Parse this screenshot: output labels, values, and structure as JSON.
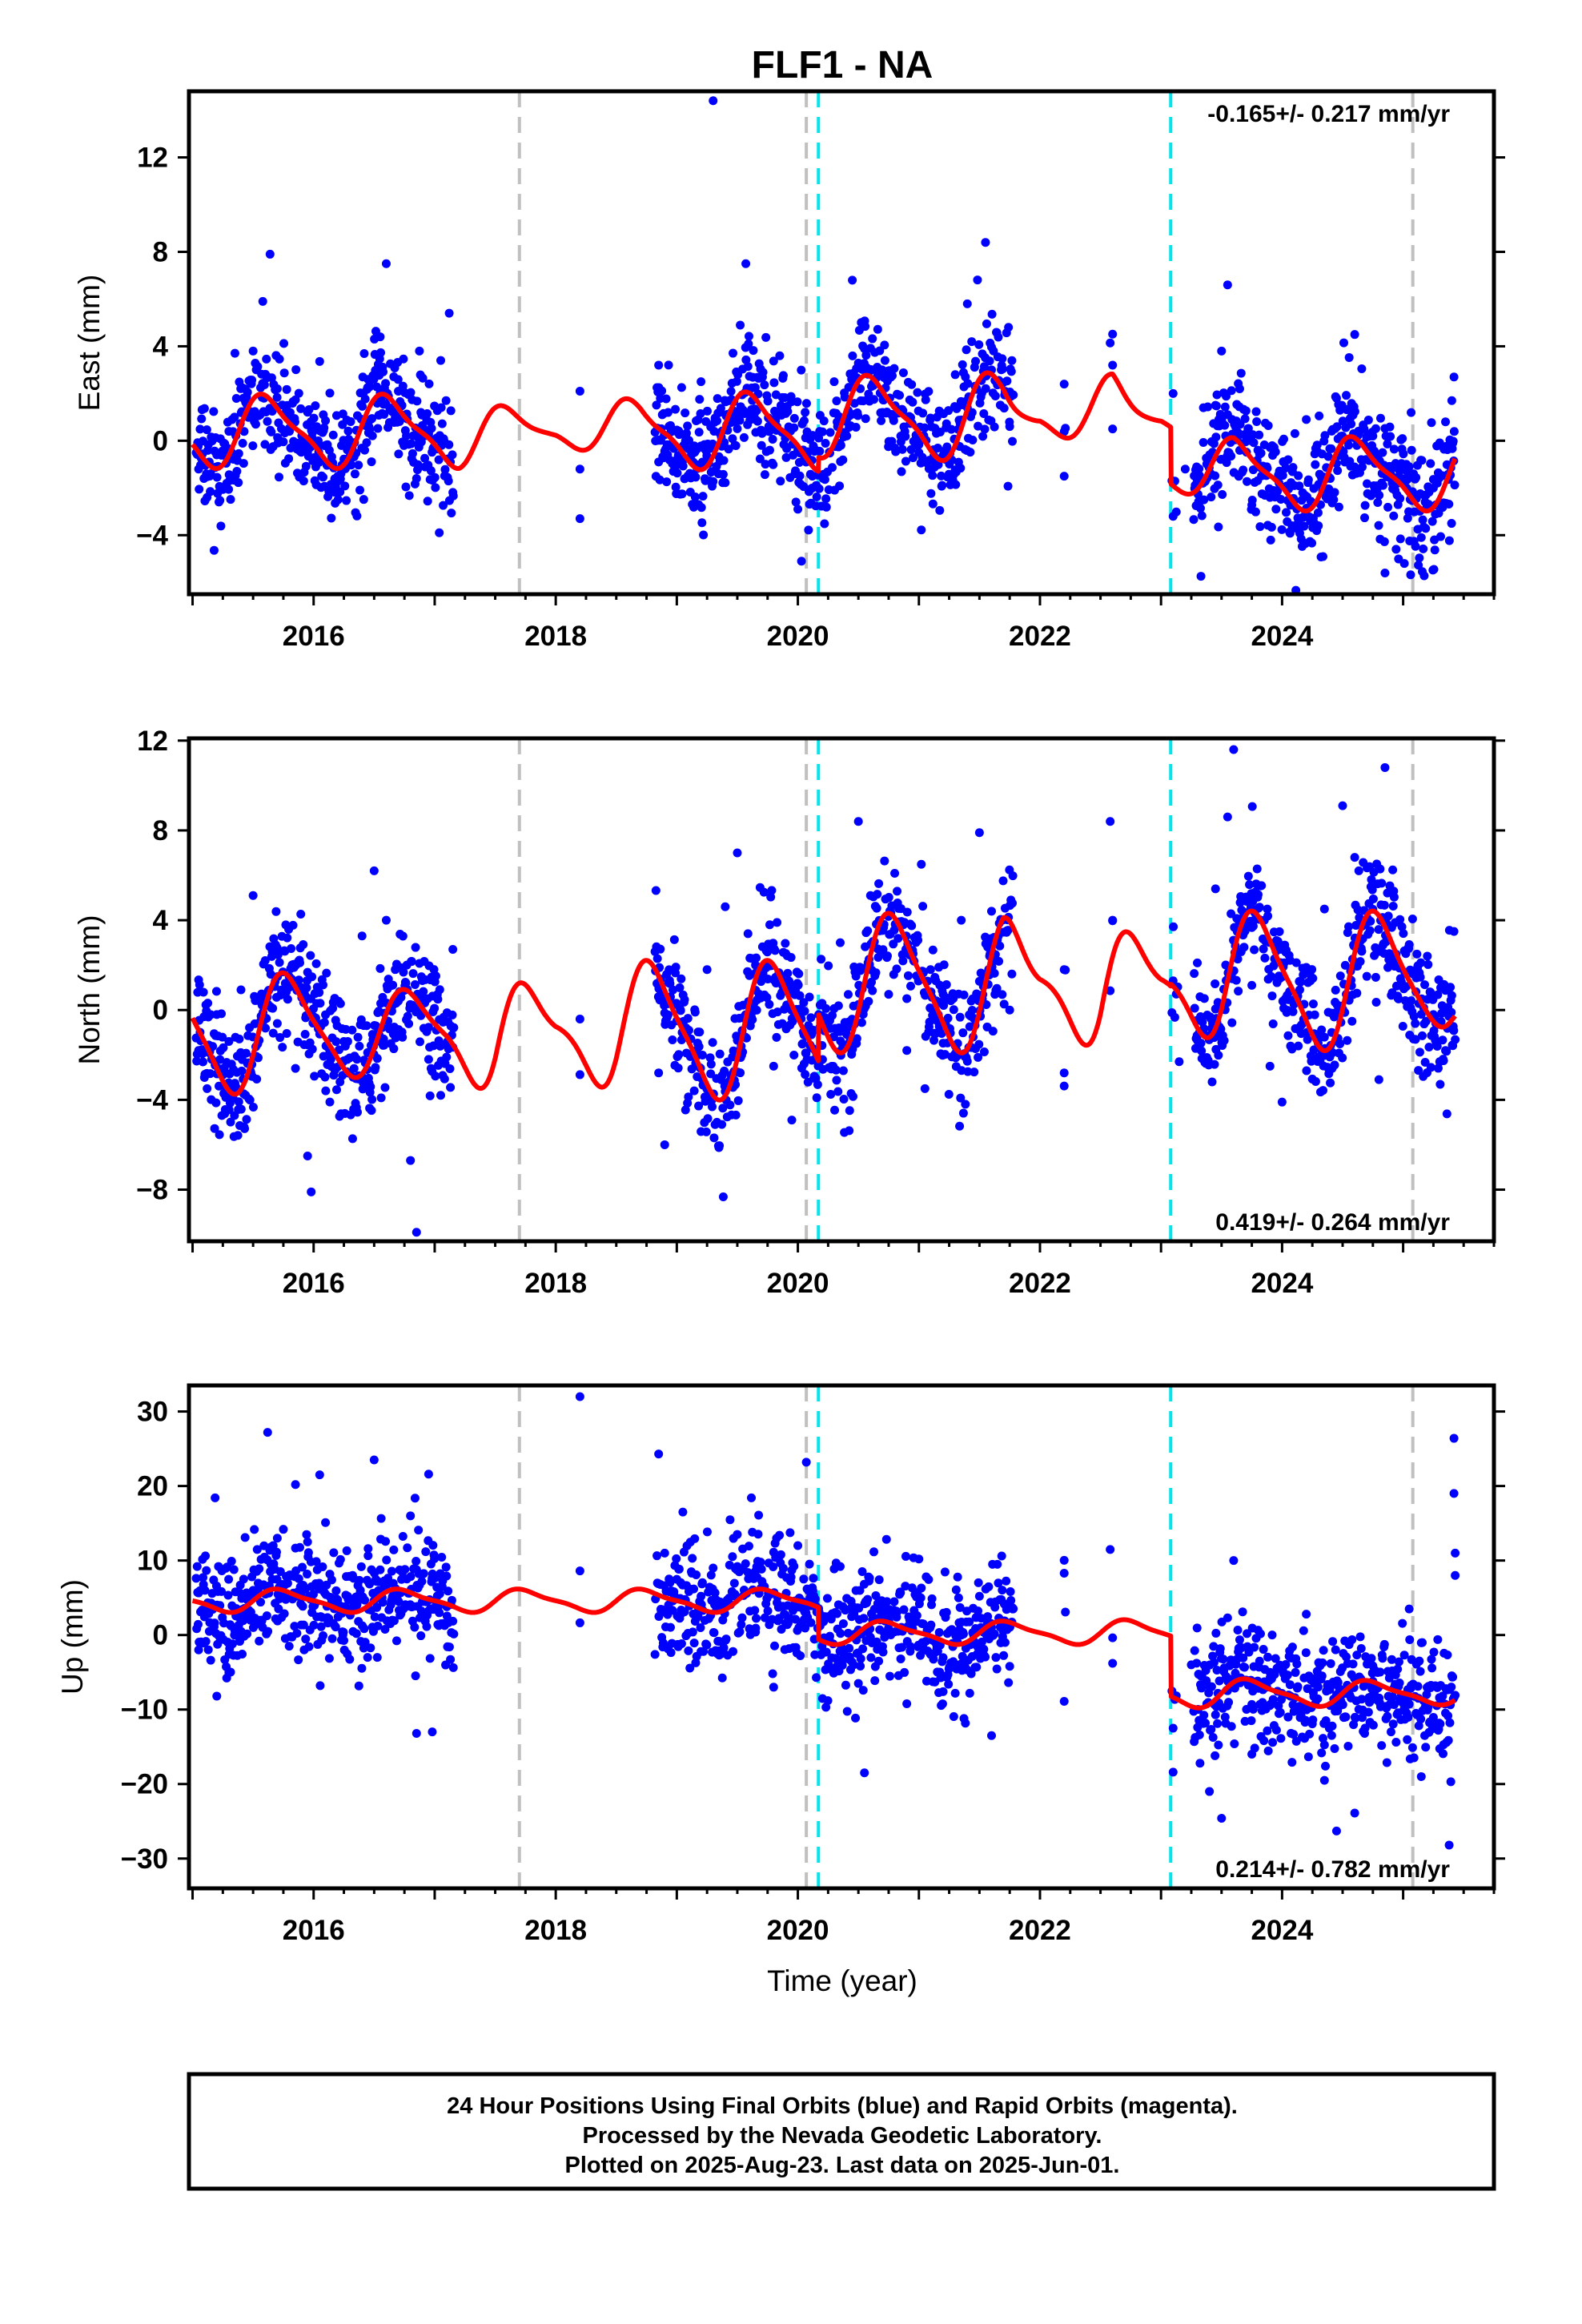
{
  "page": {
    "title": "FLF1 - NA",
    "x_label": "Time (year)",
    "footer_lines": [
      "24 Hour Positions Using Final Orbits (blue) and Rapid Orbits (magenta).",
      "Processed by the Nevada Geodetic Laboratory.",
      "Plotted on 2025-Aug-23. Last data on 2025-Jun-01."
    ]
  },
  "colors": {
    "points": "#0000ff",
    "model": "#ff0000",
    "equipment_change": "#c0c0c0",
    "earthquake": "#00e5ee",
    "frame": "#000000"
  },
  "chart_data": [
    {
      "type": "scatter",
      "name": "east",
      "ylabel": "East (mm)",
      "ylim": [
        -6.5,
        14.8
      ],
      "xlim": [
        2014.97,
        2025.75
      ],
      "yticks": [
        -4,
        0,
        4,
        8,
        12
      ],
      "yticklabels": [
        "−4",
        "0",
        "4",
        "8",
        "12"
      ],
      "xticks": [
        2016,
        2018,
        2020,
        2022,
        2024
      ],
      "xticklabels": [
        "2016",
        "2018",
        "2020",
        "2022",
        "2024"
      ],
      "rate_label": "-0.165+/- 0.217 mm/yr",
      "rate_position": "top-right",
      "equipment_changes": [
        2017.7,
        2020.07,
        2025.08
      ],
      "earthquakes": [
        2020.17,
        2023.08
      ],
      "model": {
        "amplitude": 1.4,
        "phase": 0.38,
        "semi_amplitude": 0.4,
        "offsets": [
          {
            "t": 2015.0,
            "v": 0.4
          },
          {
            "t": 2020.17,
            "v": 1.0
          },
          {
            "t": 2023.08,
            "v": -1.4
          }
        ],
        "steps": [
          {
            "t": 2020.07,
            "d": -0.6
          },
          {
            "t": 2020.17,
            "d": 2.2
          },
          {
            "t": 2023.08,
            "d": -1.8
          },
          {
            "t": 2025.08,
            "d": 0.5
          }
        ],
        "envelope": [
          [
            2015.0,
            1.0
          ],
          [
            2017.2,
            1.0
          ],
          [
            2018.0,
            0.3
          ],
          [
            2018.7,
            1.0
          ],
          [
            2021.7,
            1.2
          ],
          [
            2022.0,
            0.3
          ],
          [
            2022.4,
            0.8
          ],
          [
            2022.6,
            1.2
          ],
          [
            2023.0,
            0.3
          ],
          [
            2023.6,
            1.0
          ],
          [
            2025.4,
            1.0
          ]
        ]
      },
      "sample_points": [
        [
          2015.05,
          -1.2
        ],
        [
          2015.12,
          -2.4
        ],
        [
          2015.2,
          -0.6
        ],
        [
          2015.3,
          0.4
        ],
        [
          2015.42,
          1.8
        ],
        [
          2015.5,
          3.8
        ],
        [
          2015.58,
          5.9
        ],
        [
          2015.64,
          7.9
        ],
        [
          2015.7,
          2.2
        ],
        [
          2015.8,
          0.4
        ],
        [
          2015.95,
          -0.5
        ],
        [
          2016.08,
          1.1
        ],
        [
          2016.2,
          -1.5
        ],
        [
          2016.3,
          -0.2
        ],
        [
          2016.45,
          2.6
        ],
        [
          2016.55,
          4.4
        ],
        [
          2016.6,
          7.5
        ],
        [
          2016.7,
          2.1
        ],
        [
          2016.85,
          -1.6
        ],
        [
          2016.95,
          0.3
        ],
        [
          2017.05,
          3.4
        ],
        [
          2017.12,
          5.4
        ],
        [
          2018.2,
          2.1
        ],
        [
          2018.2,
          -3.3
        ],
        [
          2018.85,
          -0.9
        ],
        [
          2018.85,
          3.2
        ],
        [
          2019.1,
          -1.5
        ],
        [
          2019.2,
          2.5
        ],
        [
          2019.3,
          14.4
        ],
        [
          2019.45,
          1.2
        ],
        [
          2019.57,
          7.5
        ],
        [
          2019.7,
          -0.2
        ],
        [
          2019.85,
          3.6
        ],
        [
          2020.0,
          -2.9
        ],
        [
          2020.03,
          -5.1
        ],
        [
          2020.12,
          -2.0
        ],
        [
          2020.18,
          0.4
        ],
        [
          2020.3,
          2.5
        ],
        [
          2020.45,
          6.8
        ],
        [
          2020.55,
          3.9
        ],
        [
          2020.7,
          1.2
        ],
        [
          2020.85,
          0.2
        ],
        [
          2021.0,
          -0.5
        ],
        [
          2021.15,
          1.0
        ],
        [
          2021.3,
          2.8
        ],
        [
          2021.4,
          5.8
        ],
        [
          2021.55,
          8.4
        ],
        [
          2021.6,
          3.0
        ],
        [
          2021.75,
          0.6
        ],
        [
          2022.2,
          2.4
        ],
        [
          2022.2,
          -1.5
        ],
        [
          2022.6,
          3.2
        ],
        [
          2022.6,
          0.5
        ],
        [
          2023.1,
          2.0
        ],
        [
          2023.1,
          -3.2
        ],
        [
          2023.2,
          -1.2
        ],
        [
          2023.35,
          1.4
        ],
        [
          2023.5,
          3.8
        ],
        [
          2023.55,
          6.6
        ],
        [
          2023.65,
          2.2
        ],
        [
          2023.8,
          -0.4
        ],
        [
          2023.9,
          -2.4
        ],
        [
          2024.05,
          -0.8
        ],
        [
          2024.2,
          0.9
        ],
        [
          2024.3,
          -3.6
        ],
        [
          2024.45,
          1.8
        ],
        [
          2024.6,
          4.5
        ],
        [
          2024.75,
          0.2
        ],
        [
          2024.85,
          -5.6
        ],
        [
          2024.95,
          -2.3
        ],
        [
          2025.05,
          -1.1
        ],
        [
          2025.15,
          -4.1
        ],
        [
          2025.25,
          -2.0
        ],
        [
          2025.35,
          0.8
        ],
        [
          2025.42,
          2.7
        ],
        [
          2025.4,
          -3.5
        ]
      ]
    },
    {
      "type": "scatter",
      "name": "north",
      "ylabel": "North (mm)",
      "ylim": [
        -10.3,
        12.1
      ],
      "xlim": [
        2014.97,
        2025.75
      ],
      "yticks": [
        -8,
        -4,
        0,
        4,
        8,
        12
      ],
      "yticklabels": [
        "−8",
        "−4",
        "0",
        "4",
        "8",
        "12"
      ],
      "xticks": [
        2016,
        2018,
        2020,
        2022,
        2024
      ],
      "xticklabels": [
        "2016",
        "2018",
        "2020",
        "2022",
        "2024"
      ],
      "rate_label": "0.419+/- 0.264 mm/yr",
      "rate_position": "bottom-right",
      "equipment_changes": [
        2017.7,
        2020.07,
        2025.08
      ],
      "earthquakes": [
        2020.17,
        2023.08
      ],
      "model": {
        "amplitude": 2.9,
        "phase": 0.55,
        "semi_amplitude": 0.6,
        "offsets": [
          {
            "t": 2015.0,
            "v": -0.9
          },
          {
            "t": 2020.17,
            "v": 1.2
          },
          {
            "t": 2023.08,
            "v": 1.3
          }
        ],
        "steps": [
          {
            "t": 2020.07,
            "d": -0.8
          },
          {
            "t": 2020.17,
            "d": 0.8
          },
          {
            "t": 2025.08,
            "d": -0.4
          }
        ],
        "envelope": [
          [
            2015.0,
            1.0
          ],
          [
            2017.1,
            0.5
          ],
          [
            2017.5,
            1.0
          ],
          [
            2018.0,
            0.3
          ],
          [
            2018.5,
            1.0
          ],
          [
            2019.3,
            1.0
          ],
          [
            2021.7,
            1.0
          ],
          [
            2022.0,
            0.3
          ],
          [
            2022.5,
            1.1
          ],
          [
            2023.0,
            0.3
          ],
          [
            2023.5,
            1.0
          ],
          [
            2025.0,
            1.0
          ],
          [
            2025.4,
            0.6
          ]
        ]
      },
      "sample_points": [
        [
          2015.05,
          -1.8
        ],
        [
          2015.12,
          -3.5
        ],
        [
          2015.2,
          -0.2
        ],
        [
          2015.3,
          -1.4
        ],
        [
          2015.4,
          0.9
        ],
        [
          2015.5,
          5.1
        ],
        [
          2015.6,
          2.2
        ],
        [
          2015.7,
          -0.6
        ],
        [
          2015.85,
          -2.6
        ],
        [
          2015.95,
          -6.5
        ],
        [
          2015.98,
          -8.1
        ],
        [
          2016.1,
          -3.6
        ],
        [
          2016.25,
          -1.4
        ],
        [
          2016.4,
          3.3
        ],
        [
          2016.5,
          6.2
        ],
        [
          2016.6,
          4.0
        ],
        [
          2016.7,
          0.4
        ],
        [
          2016.8,
          -6.7
        ],
        [
          2016.85,
          -9.9
        ],
        [
          2016.95,
          -2.2
        ],
        [
          2017.05,
          -3.8
        ],
        [
          2017.15,
          2.7
        ],
        [
          2018.2,
          -0.4
        ],
        [
          2018.85,
          -2.8
        ],
        [
          2018.9,
          -6.0
        ],
        [
          2019.1,
          -0.9
        ],
        [
          2019.25,
          1.8
        ],
        [
          2019.4,
          4.6
        ],
        [
          2019.5,
          7.0
        ],
        [
          2019.65,
          2.0
        ],
        [
          2019.8,
          -2.5
        ],
        [
          2019.95,
          -4.9
        ],
        [
          2020.05,
          -1.1
        ],
        [
          2020.2,
          0.3
        ],
        [
          2020.35,
          3.0
        ],
        [
          2020.5,
          8.4
        ],
        [
          2020.6,
          5.1
        ],
        [
          2020.75,
          0.7
        ],
        [
          2020.9,
          -1.8
        ],
        [
          2021.05,
          -3.5
        ],
        [
          2021.2,
          0.7
        ],
        [
          2021.35,
          4.0
        ],
        [
          2021.5,
          7.9
        ],
        [
          2021.6,
          4.4
        ],
        [
          2021.75,
          0.0
        ],
        [
          2022.2,
          1.8
        ],
        [
          2022.2,
          -2.8
        ],
        [
          2022.58,
          8.4
        ],
        [
          2022.6,
          4.0
        ],
        [
          2023.1,
          1.3
        ],
        [
          2023.15,
          -2.3
        ],
        [
          2023.3,
          2.1
        ],
        [
          2023.45,
          5.4
        ],
        [
          2023.55,
          8.6
        ],
        [
          2023.6,
          11.6
        ],
        [
          2023.75,
          1.1
        ],
        [
          2023.9,
          -2.5
        ],
        [
          2024.0,
          -4.1
        ],
        [
          2024.2,
          1.9
        ],
        [
          2024.35,
          4.5
        ],
        [
          2024.5,
          9.1
        ],
        [
          2024.6,
          6.8
        ],
        [
          2024.7,
          1.5
        ],
        [
          2024.8,
          -3.1
        ],
        [
          2024.85,
          10.8
        ],
        [
          2024.95,
          2.0
        ],
        [
          2025.1,
          -0.6
        ],
        [
          2025.2,
          2.4
        ],
        [
          2025.35,
          -1.8
        ],
        [
          2025.42,
          3.5
        ]
      ]
    },
    {
      "type": "scatter",
      "name": "up",
      "ylabel": "Up (mm)",
      "ylim": [
        -34,
        33.5
      ],
      "xlim": [
        2014.97,
        2025.75
      ],
      "yticks": [
        -30,
        -20,
        -10,
        0,
        10,
        20,
        30
      ],
      "yticklabels": [
        "−30",
        "−20",
        "−10",
        "0",
        "10",
        "20",
        "30"
      ],
      "xticks": [
        2016,
        2018,
        2020,
        2022,
        2024
      ],
      "xticklabels": [
        "2016",
        "2018",
        "2020",
        "2022",
        "2024"
      ],
      "rate_label": "0.214+/- 0.782 mm/yr",
      "rate_position": "bottom-right",
      "equipment_changes": [
        2017.7,
        2020.07,
        2025.08
      ],
      "earthquakes": [
        2020.17,
        2023.08
      ],
      "model": {
        "amplitude": 1.4,
        "phase": 0.5,
        "semi_amplitude": 0.4,
        "offsets": [
          {
            "t": 2015.0,
            "v": 4.6
          },
          {
            "t": 2020.17,
            "v": 0.3
          },
          {
            "t": 2023.08,
            "v": -7.8
          }
        ],
        "steps": [
          {
            "t": 2020.07,
            "d": -1.2
          },
          {
            "t": 2020.17,
            "d": -7.5
          },
          {
            "t": 2023.08,
            "d": -9.5
          },
          {
            "t": 2025.08,
            "d": 2.0
          }
        ],
        "envelope": [
          [
            2015.0,
            1.0
          ],
          [
            2022.5,
            1.0
          ],
          [
            2023.0,
            1.3
          ],
          [
            2025.4,
            1.0
          ]
        ]
      },
      "sample_points": [
        [
          2015.05,
          -2.0
        ],
        [
          2015.12,
          4.0
        ],
        [
          2015.2,
          -8.2
        ],
        [
          2015.3,
          -5.0
        ],
        [
          2015.4,
          0.5
        ],
        [
          2015.5,
          6.0
        ],
        [
          2015.55,
          8.9
        ],
        [
          2015.62,
          27.2
        ],
        [
          2015.7,
          13.0
        ],
        [
          2015.85,
          20.2
        ],
        [
          2015.95,
          12.5
        ],
        [
          2016.05,
          21.5
        ],
        [
          2016.15,
          7.4
        ],
        [
          2016.3,
          3.0
        ],
        [
          2016.45,
          11.6
        ],
        [
          2016.5,
          23.5
        ],
        [
          2016.65,
          2.0
        ],
        [
          2016.8,
          16.0
        ],
        [
          2016.85,
          -13.2
        ],
        [
          2016.95,
          21.6
        ],
        [
          2016.98,
          -13.0
        ],
        [
          2017.1,
          3.8
        ],
        [
          2018.2,
          32.0
        ],
        [
          2018.2,
          8.6
        ],
        [
          2018.85,
          24.3
        ],
        [
          2018.9,
          11.0
        ],
        [
          2019.05,
          16.5
        ],
        [
          2019.2,
          5.2
        ],
        [
          2019.35,
          -2.7
        ],
        [
          2019.5,
          13.5
        ],
        [
          2019.65,
          0.4
        ],
        [
          2019.8,
          -7.0
        ],
        [
          2019.95,
          8.7
        ],
        [
          2020.0,
          12.0
        ],
        [
          2020.07,
          23.2
        ],
        [
          2020.2,
          -1.5
        ],
        [
          2020.35,
          9.2
        ],
        [
          2020.5,
          -6.5
        ],
        [
          2020.55,
          -18.5
        ],
        [
          2020.7,
          4.0
        ],
        [
          2020.85,
          -3.2
        ],
        [
          2021.0,
          10.2
        ],
        [
          2021.2,
          -7.6
        ],
        [
          2021.35,
          0.0
        ],
        [
          2021.5,
          5.2
        ],
        [
          2021.6,
          -13.5
        ],
        [
          2021.75,
          -4.2
        ],
        [
          2022.2,
          8.3
        ],
        [
          2022.2,
          -8.9
        ],
        [
          2022.6,
          -3.8
        ],
        [
          2023.1,
          -12.5
        ],
        [
          2023.1,
          -18.4
        ],
        [
          2023.25,
          -4.0
        ],
        [
          2023.4,
          -21.0
        ],
        [
          2023.5,
          -24.6
        ],
        [
          2023.55,
          2.3
        ],
        [
          2023.6,
          10.0
        ],
        [
          2023.75,
          -16.0
        ],
        [
          2023.9,
          -5.0
        ],
        [
          2024.05,
          -11.0
        ],
        [
          2024.2,
          2.8
        ],
        [
          2024.35,
          -19.5
        ],
        [
          2024.45,
          -26.3
        ],
        [
          2024.6,
          -23.9
        ],
        [
          2024.75,
          -6.2
        ],
        [
          2024.9,
          -13.0
        ],
        [
          2025.05,
          3.5
        ],
        [
          2025.15,
          -19.0
        ],
        [
          2025.3,
          -8.4
        ],
        [
          2025.38,
          -28.2
        ],
        [
          2025.42,
          26.4
        ],
        [
          2025.42,
          19.0
        ],
        [
          2025.43,
          11.0
        ],
        [
          2025.43,
          8.0
        ]
      ]
    }
  ]
}
